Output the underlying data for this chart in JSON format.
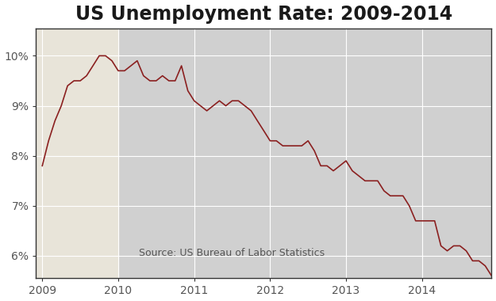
{
  "title": "US Unemployment Rate: 2009-2014",
  "source_text": "Source: US Bureau of Labor Statistics",
  "line_color": "#8B2020",
  "background_plot": "#D0D0D0",
  "background_shaded": "#E8E4D9",
  "background_fig": "#FFFFFF",
  "ylim": [
    5.55,
    10.55
  ],
  "yticks": [
    6,
    7,
    8,
    9,
    10
  ],
  "ytick_labels": [
    "6%",
    "7%",
    "8%",
    "9%",
    "10%"
  ],
  "shaded_xmin": 2008.917,
  "shaded_xmax": 2010.0,
  "xlim": [
    2008.917,
    2014.917
  ],
  "months": [
    2009.0,
    2009.083,
    2009.167,
    2009.25,
    2009.333,
    2009.417,
    2009.5,
    2009.583,
    2009.667,
    2009.75,
    2009.833,
    2009.917,
    2010.0,
    2010.083,
    2010.167,
    2010.25,
    2010.333,
    2010.417,
    2010.5,
    2010.583,
    2010.667,
    2010.75,
    2010.833,
    2010.917,
    2011.0,
    2011.083,
    2011.167,
    2011.25,
    2011.333,
    2011.417,
    2011.5,
    2011.583,
    2011.667,
    2011.75,
    2011.833,
    2011.917,
    2012.0,
    2012.083,
    2012.167,
    2012.25,
    2012.333,
    2012.417,
    2012.5,
    2012.583,
    2012.667,
    2012.75,
    2012.833,
    2012.917,
    2013.0,
    2013.083,
    2013.167,
    2013.25,
    2013.333,
    2013.417,
    2013.5,
    2013.583,
    2013.667,
    2013.75,
    2013.833,
    2013.917,
    2014.0,
    2014.083,
    2014.167,
    2014.25,
    2014.333,
    2014.417,
    2014.5,
    2014.583,
    2014.667,
    2014.75,
    2014.833,
    2014.917
  ],
  "unemployment": [
    7.8,
    8.3,
    8.7,
    9.0,
    9.4,
    9.5,
    9.5,
    9.6,
    9.8,
    10.0,
    10.0,
    9.9,
    9.7,
    9.7,
    9.8,
    9.9,
    9.6,
    9.5,
    9.5,
    9.6,
    9.5,
    9.5,
    9.8,
    9.3,
    9.1,
    9.0,
    8.9,
    9.0,
    9.1,
    9.0,
    9.1,
    9.1,
    9.0,
    8.9,
    8.7,
    8.5,
    8.3,
    8.3,
    8.2,
    8.2,
    8.2,
    8.2,
    8.3,
    8.1,
    7.8,
    7.8,
    7.7,
    7.8,
    7.9,
    7.7,
    7.6,
    7.5,
    7.5,
    7.5,
    7.3,
    7.2,
    7.2,
    7.2,
    7.0,
    6.7,
    6.7,
    6.7,
    6.7,
    6.2,
    6.1,
    6.2,
    6.2,
    6.1,
    5.9,
    5.9,
    5.8,
    5.6
  ],
  "xticks": [
    2009,
    2010,
    2011,
    2012,
    2013,
    2014
  ],
  "xtick_labels": [
    "2009",
    "2010",
    "2011",
    "2012",
    "2013",
    "2014"
  ],
  "title_fontsize": 17,
  "tick_fontsize": 10,
  "source_fontsize": 9,
  "linewidth": 1.2,
  "spine_color": "#333333",
  "grid_color": "#FFFFFF",
  "tick_color": "#555555"
}
